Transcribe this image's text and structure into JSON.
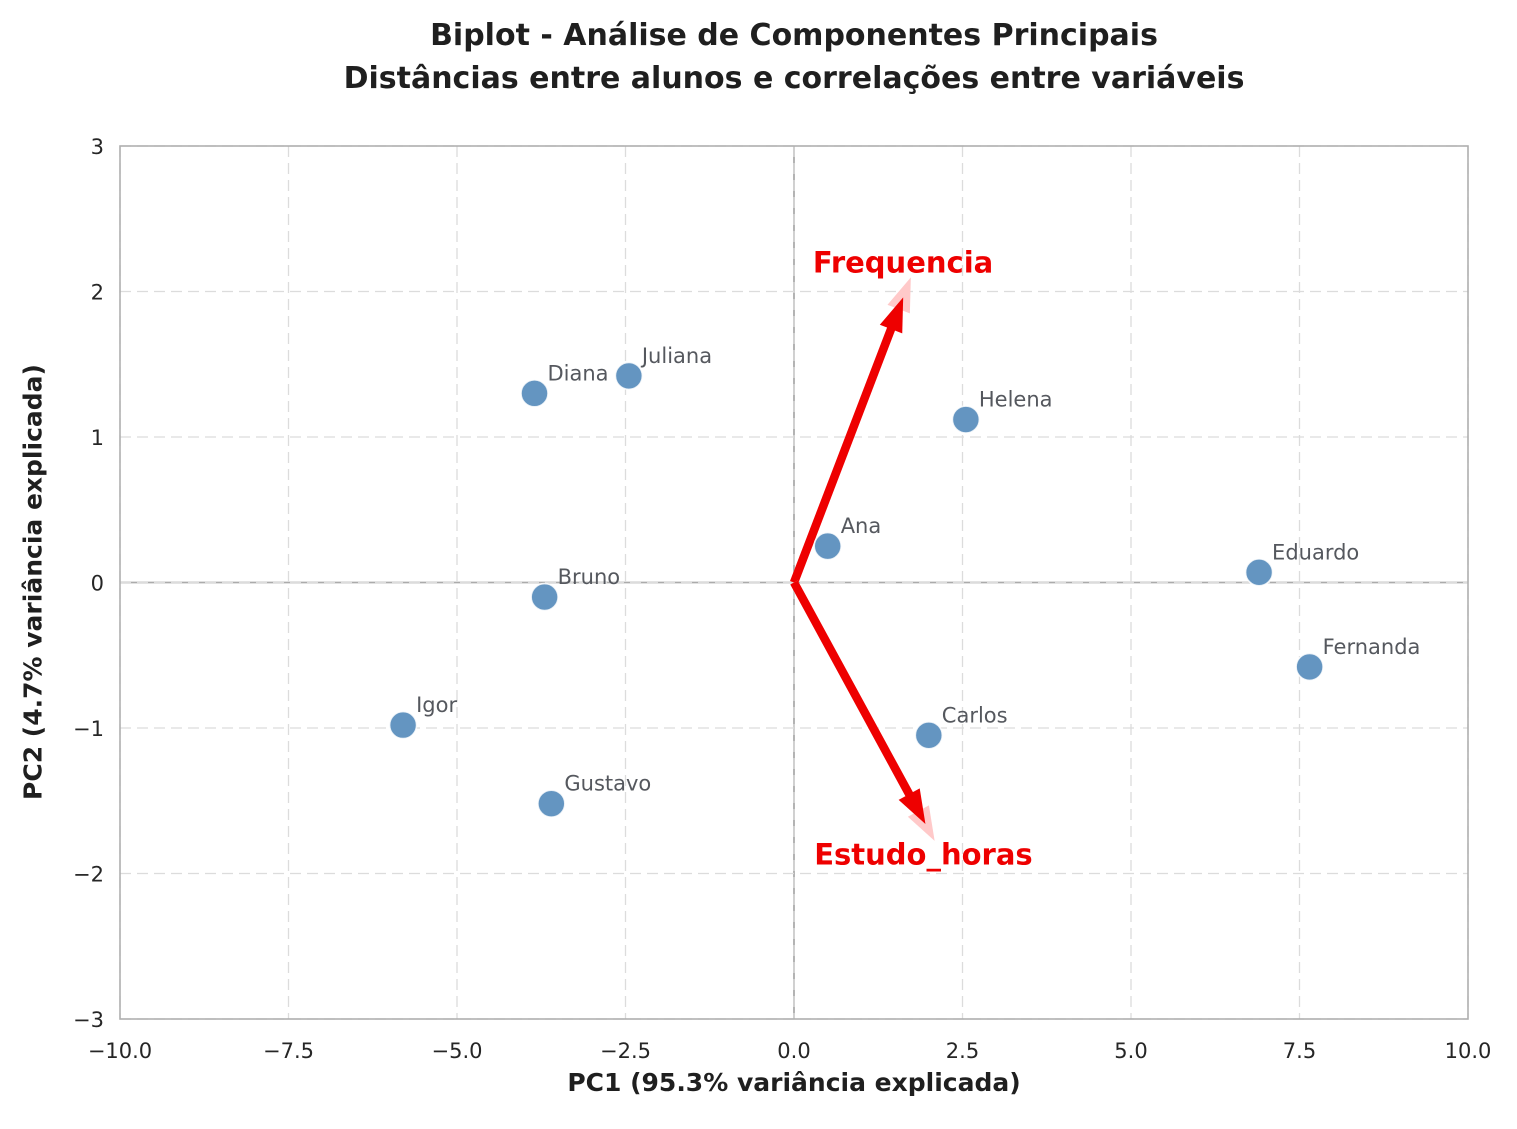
{
  "chart_data": {
    "type": "scatter",
    "subtype": "pca-biplot",
    "title": "Biplot - Análise de Componentes Principais",
    "subtitle": "Distâncias entre alunos e correlações entre variáveis",
    "xlabel": "PC1 (95.3% variância explicada)",
    "ylabel": "PC2 (4.7% variância explicada)",
    "xlim": [
      -10.0,
      10.0
    ],
    "ylim": [
      -3.0,
      3.0
    ],
    "grid": true,
    "legend": "none",
    "xticks": {
      "values": [
        -10.0,
        -7.5,
        -5.0,
        -2.5,
        0.0,
        2.5,
        5.0,
        7.5,
        10.0
      ],
      "labels": [
        "−10.0",
        "−7.5",
        "−5.0",
        "−2.5",
        "0.0",
        "2.5",
        "5.0",
        "7.5",
        "10.0"
      ]
    },
    "yticks": {
      "values": [
        3,
        2,
        1,
        0,
        -1,
        -2,
        -3
      ],
      "labels": [
        "3",
        "2",
        "1",
        "0",
        "−1",
        "−2",
        "−3"
      ]
    },
    "points": [
      {
        "label": "Ana",
        "x": 0.5,
        "y": 0.25
      },
      {
        "label": "Bruno",
        "x": -3.7,
        "y": -0.1
      },
      {
        "label": "Carlos",
        "x": 2.0,
        "y": -1.05
      },
      {
        "label": "Diana",
        "x": -3.85,
        "y": 1.3
      },
      {
        "label": "Eduardo",
        "x": 6.9,
        "y": 0.07
      },
      {
        "label": "Fernanda",
        "x": 7.65,
        "y": -0.58
      },
      {
        "label": "Gustavo",
        "x": -3.6,
        "y": -1.52
      },
      {
        "label": "Helena",
        "x": 2.55,
        "y": 1.12
      },
      {
        "label": "Igor",
        "x": -5.8,
        "y": -0.98
      },
      {
        "label": "Juliana",
        "x": -2.45,
        "y": 1.42
      }
    ],
    "vectors": [
      {
        "label": "Frequencia",
        "x": 1.62,
        "y": 1.96,
        "label_x": 0.28,
        "label_y": 2.2
      },
      {
        "label": "Estudo_horas",
        "x": 1.95,
        "y": -1.66,
        "label_x": 0.3,
        "label_y": -1.87
      }
    ],
    "colors": {
      "background": "#ffffff",
      "point": "#6495c1",
      "point_edge": "#ffffff",
      "point_label": "#55585e",
      "vector": "#ee0000",
      "vector_under": "#ffc9c9",
      "grid": "#dcdcdc",
      "zero_line": "#ababab",
      "spine": "#b0b0b0",
      "tick_label": "#262626",
      "title": "#1f1f1f"
    }
  }
}
